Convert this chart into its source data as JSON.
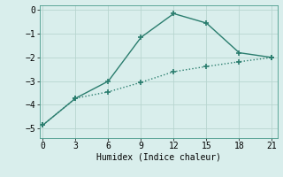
{
  "line1_x": [
    0,
    3,
    6,
    9,
    12,
    15,
    18,
    21
  ],
  "line1_y": [
    -4.85,
    -3.72,
    -3.45,
    -3.05,
    -2.6,
    -2.38,
    -2.18,
    -2.0
  ],
  "line2_x": [
    0,
    3,
    6,
    9,
    12,
    15,
    18,
    21
  ],
  "line2_y": [
    -4.85,
    -3.72,
    -3.0,
    -1.15,
    -0.15,
    -0.55,
    -1.8,
    -2.0
  ],
  "color": "#2a7d6e",
  "xlabel": "Humidex (Indice chaleur)",
  "ylim": [
    -5.4,
    0.2
  ],
  "xlim": [
    -0.3,
    21.5
  ],
  "yticks": [
    0,
    -1,
    -2,
    -3,
    -4,
    -5
  ],
  "xticks": [
    0,
    3,
    6,
    9,
    12,
    15,
    18,
    21
  ],
  "background_color": "#d9eeec",
  "grid_color": "#b8d5d0",
  "font_size": 7
}
